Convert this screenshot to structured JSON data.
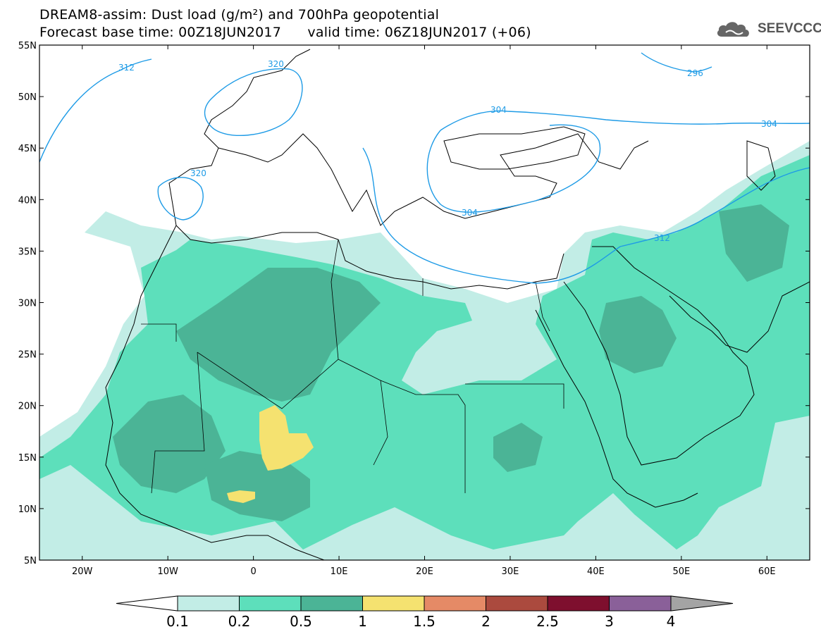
{
  "header": {
    "title_line1": "DREAM8-assim: Dust load (g/m²) and 700hPa geopotential",
    "title_line2": "Forecast base time: 00Z18JUN2017      valid time: 06Z18JUN2017 (+06)",
    "logo_text": "SEEVCCC"
  },
  "axes": {
    "lat_labels": [
      "55N",
      "50N",
      "45N",
      "40N",
      "35N",
      "30N",
      "25N",
      "20N",
      "15N",
      "10N",
      "5N"
    ],
    "lon_labels": [
      "20W",
      "10W",
      "0",
      "10E",
      "20E",
      "30E",
      "40E",
      "50E",
      "60E"
    ],
    "lon_range": [
      -25,
      65
    ],
    "lat_range": [
      5,
      55
    ]
  },
  "contours": {
    "labels": [
      "312",
      "320",
      "296",
      "304",
      "304",
      "320",
      "304",
      "312"
    ],
    "color": "#1e9be6"
  },
  "colorbar": {
    "levels": [
      "0.1",
      "0.2",
      "0.5",
      "1",
      "1.5",
      "2",
      "2.5",
      "3",
      "4"
    ],
    "colors": [
      "#c2ede6",
      "#5ddfbb",
      "#4bb496",
      "#f5e270",
      "#e58a66",
      "#ab4a3e",
      "#7e0f2e",
      "#8a6099",
      "#a4a4a4"
    ]
  }
}
